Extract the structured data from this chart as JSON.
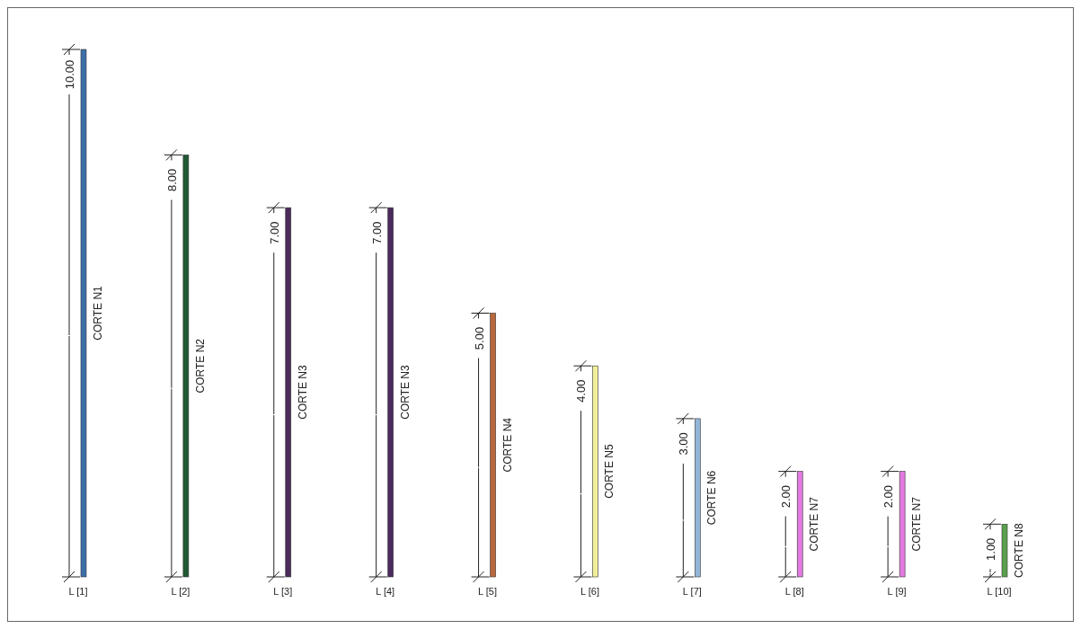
{
  "chart_data": {
    "type": "bar",
    "categories": [
      "L [1]",
      "L [2]",
      "L [3]",
      "L [4]",
      "L [5]",
      "L [6]",
      "L [7]",
      "L [8]",
      "L [9]",
      "L [10]"
    ],
    "values": [
      10,
      8,
      7,
      7,
      5,
      4,
      3,
      2,
      2,
      1
    ],
    "colors": [
      "#3d6fa8",
      "#1f5a35",
      "#4b2a5c",
      "#4b2a5c",
      "#b8683c",
      "#f2ef9a",
      "#92b6d8",
      "#e27ae0",
      "#e27ae0",
      "#5aa04f"
    ],
    "value_labels": [
      "10.00",
      "8.00",
      "7.00",
      "7.00",
      "5.00",
      "4.00",
      "3.00",
      "2.00",
      "2.00",
      "1.00"
    ],
    "annotations": [
      "CORTE N1",
      "CORTE N2",
      "CORTE N3",
      "CORTE N3",
      "CORTE N4",
      "CORTE N5",
      "CORTE N6",
      "CORTE N7",
      "CORTE N7",
      "CORTE N8"
    ]
  }
}
